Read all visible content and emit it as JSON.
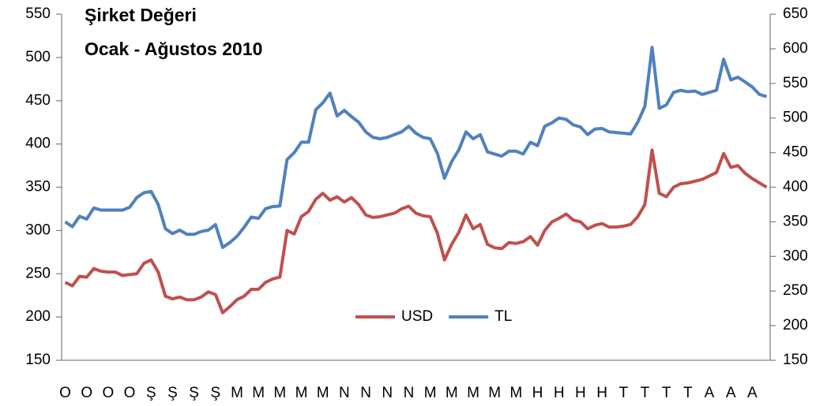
{
  "chart_data": {
    "type": "line",
    "title": "Şirket Değeri",
    "subtitle": "Ocak - Ağustos 2010",
    "categories": [
      "O",
      null,
      null,
      "O",
      null,
      null,
      "O",
      null,
      null,
      "O",
      null,
      null,
      "Ş",
      null,
      null,
      "Ş",
      null,
      null,
      "Ş",
      null,
      null,
      "Ş",
      null,
      null,
      "M",
      null,
      null,
      "M",
      null,
      null,
      "M",
      null,
      null,
      "M",
      null,
      null,
      "M",
      null,
      null,
      "N",
      null,
      null,
      "N",
      null,
      null,
      "N",
      null,
      null,
      "N",
      null,
      null,
      "M",
      null,
      null,
      "M",
      null,
      null,
      "M",
      null,
      null,
      "M",
      null,
      null,
      "M",
      null,
      null,
      "H",
      null,
      null,
      "H",
      null,
      null,
      "H",
      null,
      null,
      "H",
      null,
      null,
      "T",
      null,
      null,
      "T",
      null,
      null,
      "T",
      null,
      null,
      "T",
      null,
      null,
      "A",
      null,
      null,
      "A",
      null,
      null,
      "A",
      null,
      null
    ],
    "series": [
      {
        "name": "USD",
        "color": "#c0504d",
        "axis": "y",
        "values": [
          240,
          236,
          247,
          246,
          256,
          253,
          252,
          252,
          248,
          249,
          250,
          262,
          266,
          252,
          224,
          221,
          223,
          220,
          220,
          223,
          229,
          226,
          205,
          212,
          220,
          224,
          232,
          232,
          240,
          244,
          246,
          300,
          296,
          316,
          322,
          336,
          343,
          335,
          339,
          333,
          338,
          330,
          318,
          315,
          316,
          318,
          320,
          325,
          328,
          320,
          317,
          316,
          297,
          266,
          284,
          298,
          318,
          302,
          307,
          284,
          280,
          279,
          286,
          285,
          287,
          293,
          283,
          300,
          310,
          314,
          319,
          312,
          310,
          302,
          306,
          308,
          304,
          304,
          305,
          307,
          316,
          330,
          393,
          343,
          339,
          350,
          354,
          355,
          357,
          359,
          363,
          367,
          389,
          373,
          375,
          366,
          360,
          355,
          350
        ]
      },
      {
        "name": "TL",
        "color": "#4f81bd",
        "axis": "y2",
        "values": [
          350,
          343,
          358,
          354,
          370,
          367,
          367,
          367,
          367,
          371,
          385,
          392,
          394,
          375,
          340,
          333,
          338,
          332,
          332,
          336,
          338,
          346,
          313,
          320,
          329,
          342,
          357,
          355,
          369,
          372,
          373,
          440,
          450,
          465,
          465,
          512,
          522,
          536,
          503,
          511,
          502,
          494,
          480,
          472,
          470,
          472,
          476,
          480,
          488,
          478,
          472,
          470,
          449,
          413,
          437,
          454,
          480,
          470,
          476,
          451,
          448,
          445,
          452,
          452,
          448,
          465,
          460,
          488,
          493,
          500,
          498,
          490,
          487,
          476,
          484,
          485,
          480,
          479,
          478,
          477,
          494,
          517,
          602,
          514,
          519,
          537,
          540,
          538,
          539,
          534,
          537,
          540,
          585,
          555,
          559,
          552,
          545,
          534,
          531
        ]
      }
    ],
    "ylim": [
      150,
      550
    ],
    "yticks": [
      150,
      200,
      250,
      300,
      350,
      400,
      450,
      500,
      550
    ],
    "y2lim": [
      150,
      650
    ],
    "y2ticks": [
      150,
      200,
      250,
      300,
      350,
      400,
      450,
      500,
      550,
      600,
      650
    ],
    "grid": false,
    "legend": "inside-bottom"
  }
}
